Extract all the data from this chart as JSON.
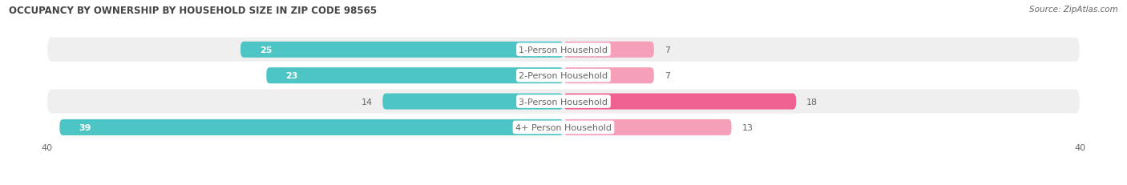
{
  "title": "OCCUPANCY BY OWNERSHIP BY HOUSEHOLD SIZE IN ZIP CODE 98565",
  "source": "Source: ZipAtlas.com",
  "categories": [
    "1-Person Household",
    "2-Person Household",
    "3-Person Household",
    "4+ Person Household"
  ],
  "owner_values": [
    25,
    23,
    14,
    39
  ],
  "renter_values": [
    7,
    7,
    18,
    13
  ],
  "owner_color": "#4dc5c5",
  "renter_color_light": "#f5a0b8",
  "renter_color_dark": "#f06090",
  "renter_colors": [
    "#f5a0b8",
    "#f5a0b8",
    "#f06090",
    "#f5a0b8"
  ],
  "row_bg_colors": [
    "#efefef",
    "#ffffff",
    "#efefef",
    "#ffffff"
  ],
  "label_color": "#666666",
  "title_color": "#444444",
  "max_val": 40,
  "figsize": [
    14.06,
    2.32
  ],
  "dpi": 100
}
